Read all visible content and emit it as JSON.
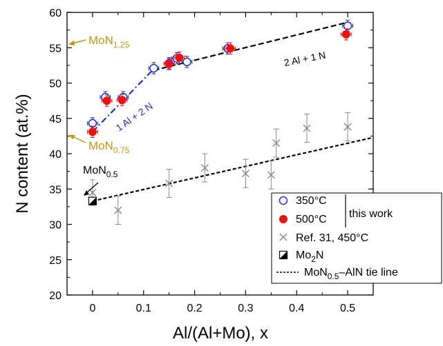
{
  "chart_data": {
    "type": "scatter",
    "xlabel": "Al/(Al+Mo), x",
    "ylabel": "N content (at.%)",
    "xlim": [
      -0.05,
      0.55
    ],
    "ylim": [
      20,
      60
    ],
    "x_ticks": [
      0,
      0.1,
      0.2,
      0.3,
      0.4,
      0.5
    ],
    "x_tick_labels": [
      "0",
      "0.1",
      "0.2",
      "0.3",
      "0.4",
      "0.5"
    ],
    "y_ticks": [
      20,
      25,
      30,
      35,
      40,
      45,
      50,
      55,
      60
    ],
    "y_tick_labels": [
      "20",
      "25",
      "30",
      "35",
      "40",
      "45",
      "50",
      "55",
      "60"
    ],
    "grid": false,
    "legend_position": "bottom-right",
    "colors": {
      "blue": "#1a2fd0",
      "red": "#ee1111",
      "gray": "#888888",
      "gold": "#c8960a",
      "black": "#000000"
    },
    "series": [
      {
        "name": "350°C",
        "marker": "open-circle",
        "color": "#1a2fd0",
        "x": [
          0.0,
          0.025,
          0.06,
          0.12,
          0.15,
          0.165,
          0.185,
          0.265,
          0.5
        ],
        "y": [
          44.3,
          48.0,
          48.0,
          52.1,
          52.8,
          53.5,
          53.0,
          54.9,
          58.1
        ],
        "yerr": 0.8,
        "xerr": 0.01
      },
      {
        "name": "500°C",
        "marker": "filled-circle",
        "color": "#ee1111",
        "x": [
          0.0,
          0.028,
          0.058,
          0.15,
          0.17,
          0.27,
          0.497
        ],
        "y": [
          43.1,
          47.5,
          47.6,
          52.7,
          53.6,
          54.9,
          56.9
        ],
        "yerr": 0.8,
        "xerr": 0.01
      },
      {
        "name": "Ref. 31, 450°C",
        "marker": "cross",
        "color": "#888888",
        "x": [
          0.0,
          0.05,
          0.15,
          0.22,
          0.3,
          0.35,
          0.36,
          0.42,
          0.5
        ],
        "y": [
          34.5,
          32.0,
          35.8,
          38.0,
          37.2,
          37.0,
          41.5,
          43.6,
          43.8
        ],
        "yerr": [
          1.8,
          2.0,
          2.0,
          2.0,
          2.0,
          2.0,
          2.0,
          2.0,
          2.0
        ]
      },
      {
        "name": "Mo2N",
        "marker": "half-filled-square",
        "color": "#000000",
        "x": [
          0.0
        ],
        "y": [
          33.3
        ]
      }
    ],
    "lines": [
      {
        "label": "1 Al + 2 N",
        "style": "dash-dot",
        "color": "#1a2fd0",
        "x": [
          0.0,
          0.12
        ],
        "y": [
          43.1,
          52.0
        ]
      },
      {
        "label": "2 Al + 1 N",
        "style": "dashed",
        "color": "#000000",
        "x": [
          0.12,
          0.5
        ],
        "y": [
          51.8,
          58.6
        ]
      },
      {
        "label": "MoN0.5–AlN tie line",
        "style": "short-dash",
        "color": "#000000",
        "x": [
          0.0,
          0.55
        ],
        "y": [
          33.3,
          42.3
        ]
      }
    ],
    "annotations": [
      {
        "text": "MoN",
        "sub": "1.25",
        "color": "#c8960a",
        "x": -0.05,
        "y": 55.6
      },
      {
        "text": "MoN",
        "sub": "0.75",
        "color": "#c8960a",
        "x": -0.05,
        "y": 42.9
      },
      {
        "text": "MoN",
        "sub": "0.5",
        "color": "#000000",
        "x": 0.0,
        "y": 33.3
      },
      {
        "text": "1 Al + 2 N",
        "color": "#1a2fd0"
      },
      {
        "text": "2 Al + 1 N",
        "color": "#000000"
      }
    ],
    "legend": {
      "items": [
        {
          "label": "350°C",
          "marker": "open-circle"
        },
        {
          "label": "500°C",
          "marker": "filled-circle"
        },
        {
          "label": "Ref. 31, 450°C",
          "marker": "cross"
        },
        {
          "label": "Mo",
          "sub": "2",
          "label_tail": "N",
          "marker": "half-filled-square"
        },
        {
          "label": "MoN",
          "sub": "0.5",
          "label_tail": "–AlN tie line",
          "marker": "short-dash-line"
        }
      ],
      "group_label": "this work"
    }
  }
}
